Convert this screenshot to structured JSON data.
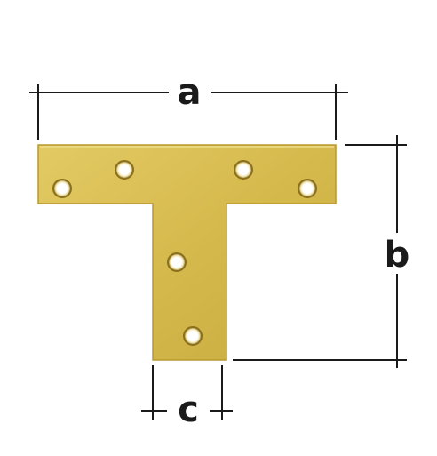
{
  "dimensions": {
    "a": "a",
    "b": "b",
    "c": "c"
  },
  "colors": {
    "plate": "#d8be52",
    "plate_edge": "#b8992e",
    "hole_fill": "#ffffff",
    "hole_ring": "#8a6f1c",
    "line": "#1a1a1a"
  }
}
